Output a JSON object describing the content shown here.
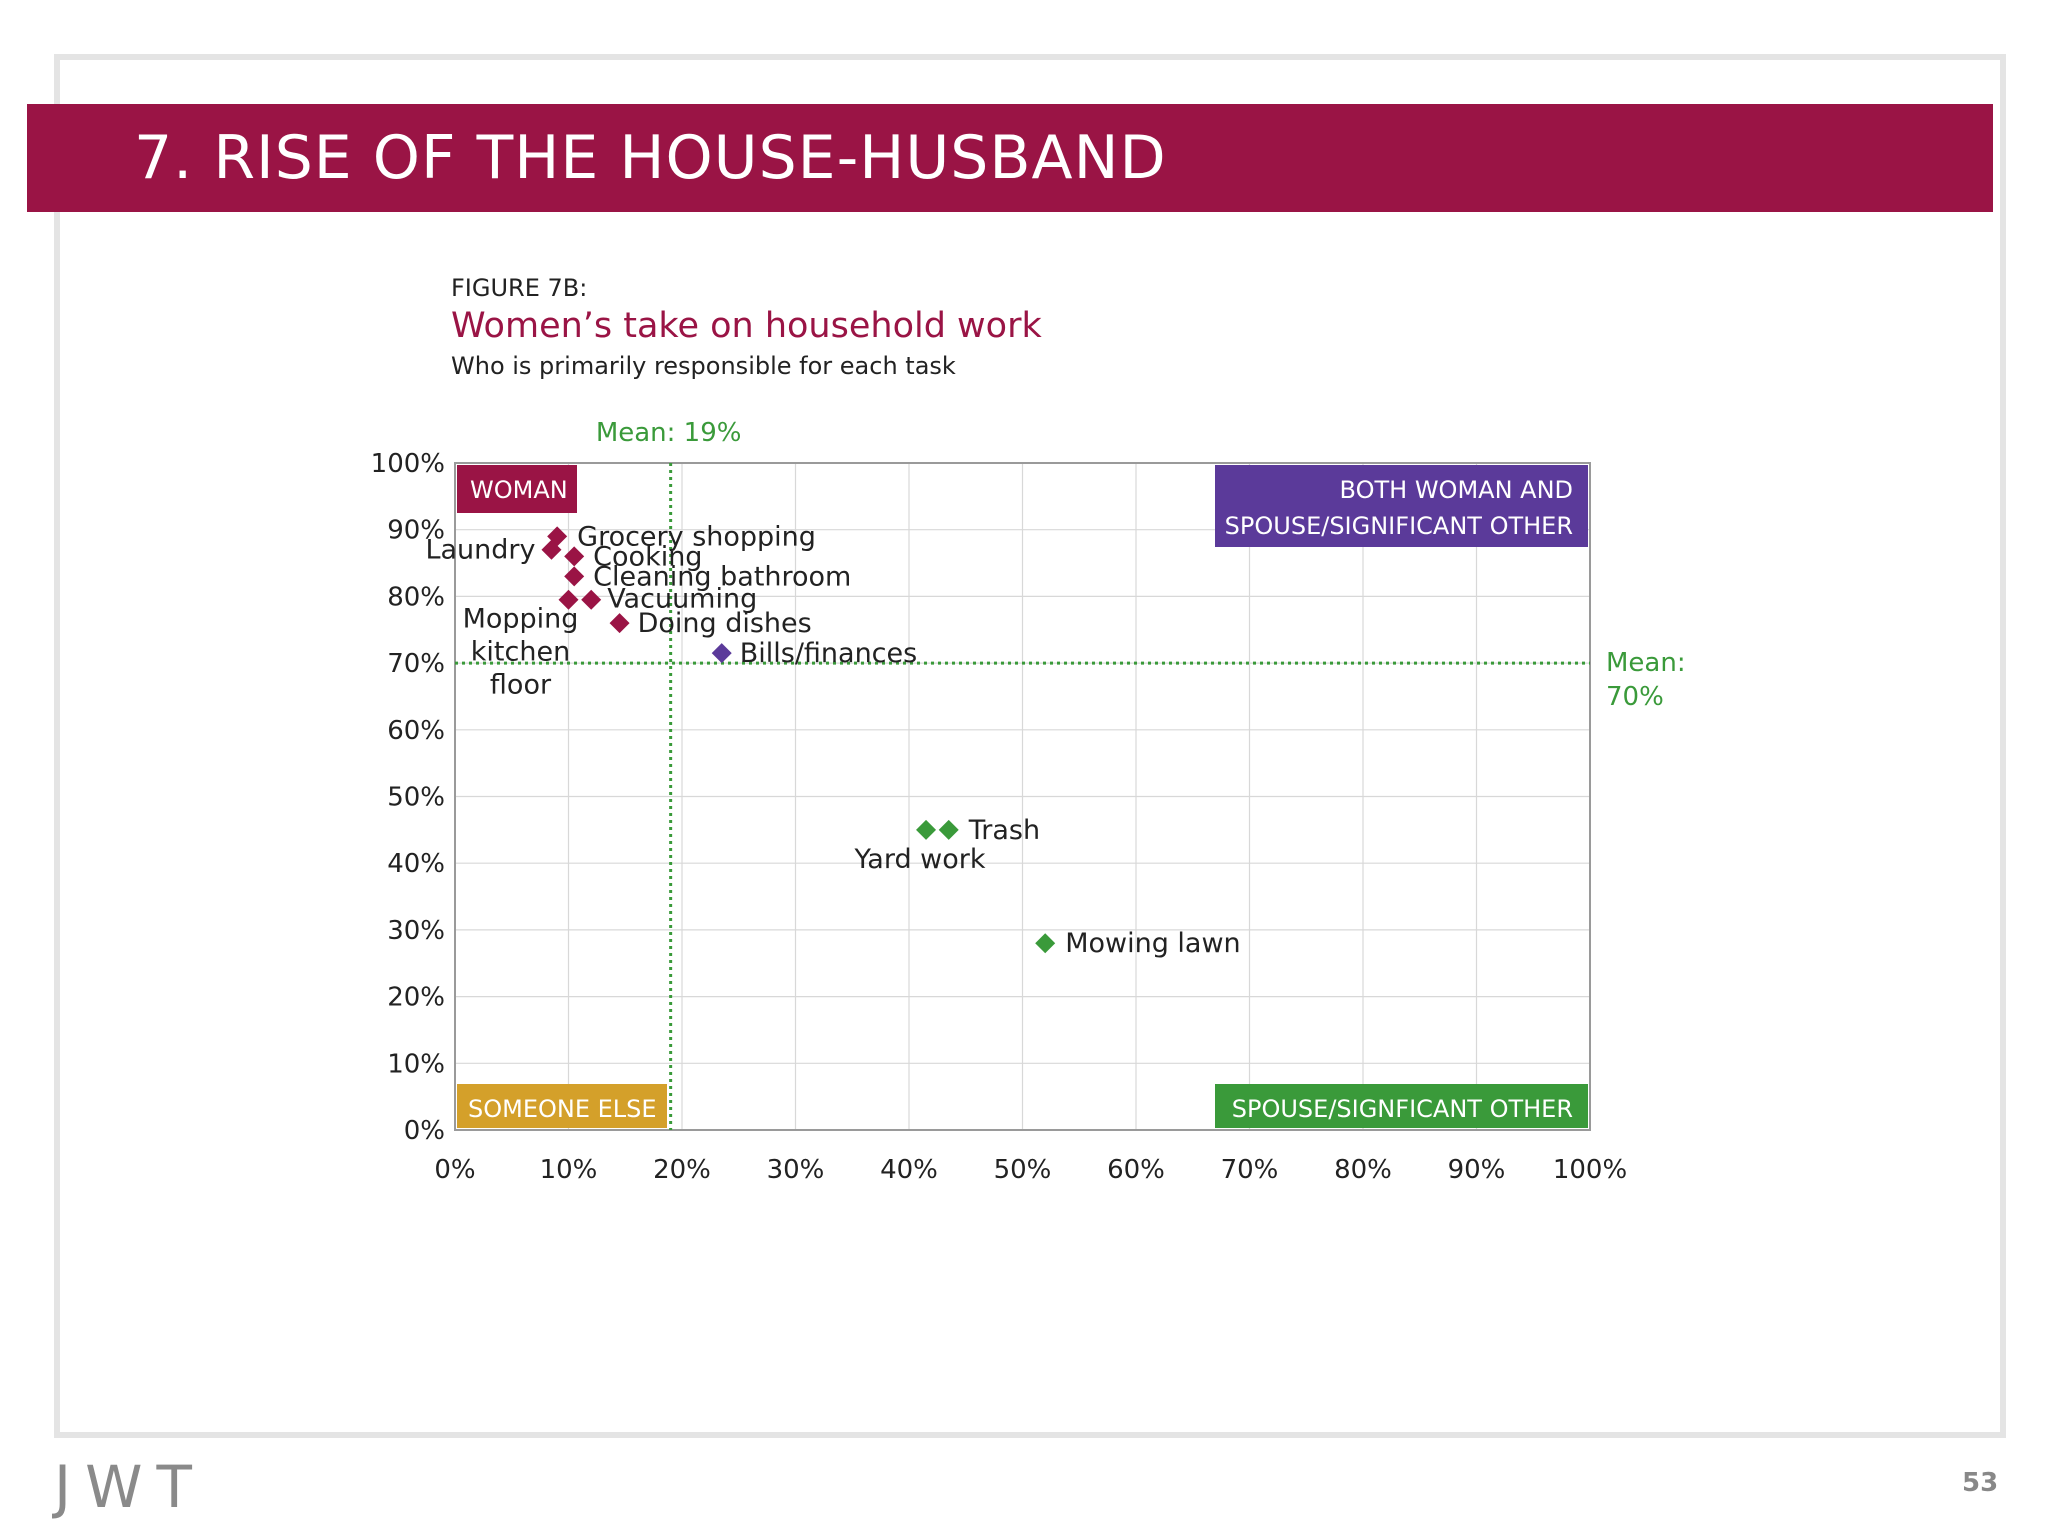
{
  "slide": {
    "title": "7. RISE OF THE HOUSE-HUSBAND",
    "page_number": "53",
    "logo_text": "JWT"
  },
  "figure": {
    "label": "FIGURE 7B:",
    "title": "Women’s take on household work",
    "subtitle": "Who is primarily responsible for each task"
  },
  "colors": {
    "title_bar": "#9a1445",
    "woman": "#9a1445",
    "both": "#5b3a9a",
    "spouse": "#3a9a3a",
    "someone_else": "#d4a02a",
    "mean_line": "#3a9a3a"
  },
  "chart_data": {
    "type": "scatter",
    "xlim": [
      0,
      100
    ],
    "ylim": [
      0,
      100
    ],
    "x_ticks": [
      "0%",
      "10%",
      "20%",
      "30%",
      "40%",
      "50%",
      "60%",
      "70%",
      "80%",
      "90%",
      "100%"
    ],
    "y_ticks": [
      "0%",
      "10%",
      "20%",
      "30%",
      "40%",
      "50%",
      "60%",
      "70%",
      "80%",
      "90%",
      "100%"
    ],
    "grid": true,
    "mean_x": {
      "value": 19,
      "label": "Mean: 19%"
    },
    "mean_y": {
      "value": 70,
      "label_line1": "Mean:",
      "label_line2": "70%"
    },
    "quadrant_labels": {
      "woman": "WOMAN",
      "both_line1": "BOTH WOMAN AND",
      "both_line2": "SPOUSE/SIGNIFICANT OTHER",
      "someone_else": "SOMEONE ELSE",
      "spouse": "SPOUSE/SIGNFICANT OTHER"
    },
    "points": [
      {
        "label": "Grocery shopping",
        "x": 9,
        "y": 89,
        "group": "woman"
      },
      {
        "label": "Laundry",
        "x": 8.5,
        "y": 87,
        "group": "woman"
      },
      {
        "label": "Cooking",
        "x": 10.5,
        "y": 86,
        "group": "woman"
      },
      {
        "label": "Cleaning bathroom",
        "x": 10.5,
        "y": 83,
        "group": "woman"
      },
      {
        "label": "Vacuuming",
        "x": 12,
        "y": 79.5,
        "group": "woman"
      },
      {
        "label": "Mopping kitchen floor",
        "x": 10,
        "y": 79.5,
        "group": "woman"
      },
      {
        "label": "Doing dishes",
        "x": 14.5,
        "y": 76,
        "group": "woman"
      },
      {
        "label": "Bills/finances",
        "x": 23.5,
        "y": 71.5,
        "group": "both"
      },
      {
        "label": "Trash",
        "x": 43.5,
        "y": 45,
        "group": "spouse"
      },
      {
        "label": "Yard work",
        "x": 41.5,
        "y": 45,
        "group": "spouse"
      },
      {
        "label": "Mowing lawn",
        "x": 52,
        "y": 28,
        "group": "spouse"
      }
    ]
  }
}
